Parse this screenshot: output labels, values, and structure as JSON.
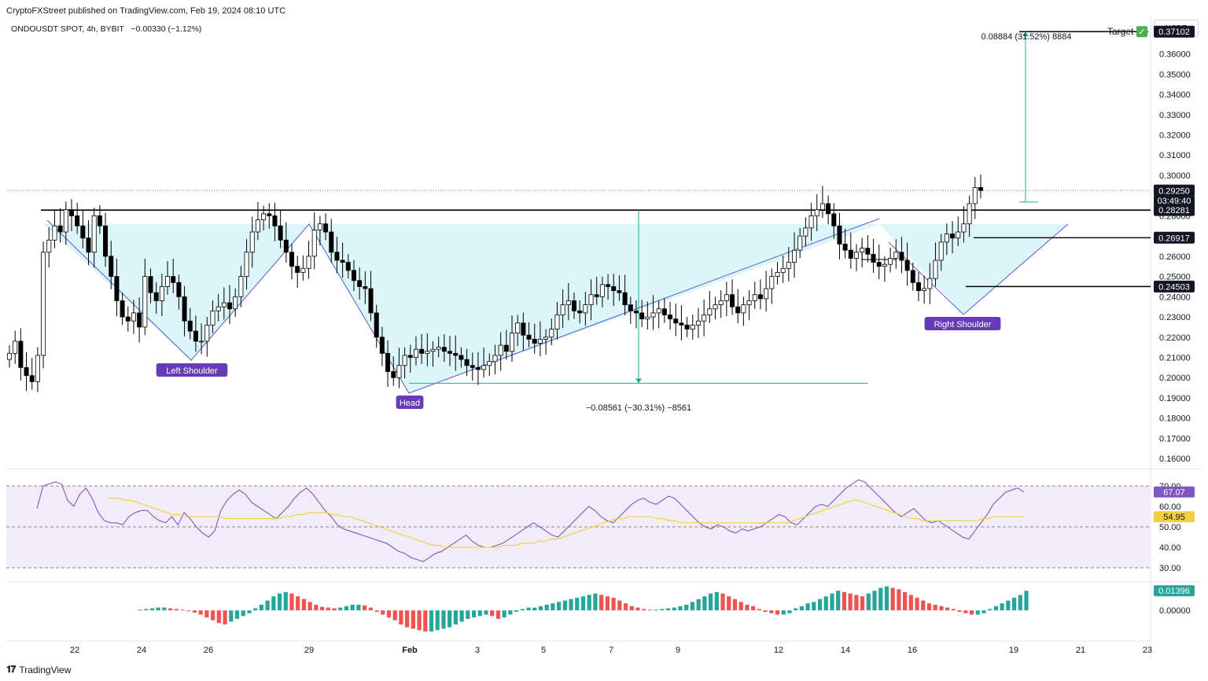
{
  "header": {
    "published": "CryptoFXStreet published on TradingView.com, Feb 19, 2024 08:10 UTC",
    "symbol_line": "ONDOUSDT SPOT, 4h, BYBIT",
    "change": "−0.00330 (−1.12%)",
    "currency": "USDT"
  },
  "footer": {
    "brand": "TradingView"
  },
  "colors": {
    "up": "#ffffff",
    "down": "#000000",
    "pattern_fill": "#c8f0f5",
    "rsi": "#7e57c2",
    "rsi_ma": "#f2d03b",
    "macd_up": "#26a69a",
    "macd_down": "#ef5350",
    "measure": "#22ab94"
  },
  "chart_data": {
    "type": "candlestick",
    "title": "ONDOUSDT SPOT, 4h, BYBIT",
    "ylabel": "USDT",
    "ylim": [
      0.155,
      0.375
    ],
    "x_ticks": [
      "22",
      "24",
      "26",
      "29",
      "Feb",
      "3",
      "5",
      "7",
      "9",
      "12",
      "14",
      "16",
      "19",
      "21",
      "23"
    ],
    "y_ticks": [
      "0.16000",
      "0.17000",
      "0.18000",
      "0.19000",
      "0.20000",
      "0.21000",
      "0.22000",
      "0.23000",
      "0.24000",
      "0.25000",
      "0.26000",
      "0.27000",
      "0.28000",
      "0.29000",
      "0.30000",
      "0.31000",
      "0.32000",
      "0.33000",
      "0.34000",
      "0.35000",
      "0.36000"
    ],
    "price_labels": [
      {
        "text": "0.37102",
        "value": 0.37102,
        "style": "black"
      },
      {
        "text": "0.29250",
        "value": 0.2925,
        "style": "black"
      },
      {
        "text": "03:49:40",
        "value": 0.2875,
        "style": "black-sub"
      },
      {
        "text": "0.28281",
        "value": 0.28281,
        "style": "black"
      },
      {
        "text": "0.26917",
        "value": 0.26917,
        "style": "black"
      },
      {
        "text": "0.24503",
        "value": 0.24503,
        "style": "black"
      }
    ],
    "close_series": [
      0.212,
      0.218,
      0.205,
      0.201,
      0.198,
      0.211,
      0.262,
      0.268,
      0.275,
      0.272,
      0.283,
      0.28,
      0.275,
      0.269,
      0.262,
      0.28,
      0.275,
      0.26,
      0.25,
      0.238,
      0.23,
      0.228,
      0.232,
      0.225,
      0.25,
      0.242,
      0.238,
      0.245,
      0.25,
      0.247,
      0.24,
      0.228,
      0.223,
      0.218,
      0.218,
      0.226,
      0.233,
      0.235,
      0.237,
      0.234,
      0.24,
      0.25,
      0.262,
      0.272,
      0.278,
      0.281,
      0.28,
      0.275,
      0.268,
      0.262,
      0.255,
      0.252,
      0.254,
      0.26,
      0.273,
      0.276,
      0.272,
      0.262,
      0.258,
      0.257,
      0.253,
      0.248,
      0.245,
      0.244,
      0.232,
      0.22,
      0.212,
      0.203,
      0.2,
      0.206,
      0.211,
      0.21,
      0.214,
      0.212,
      0.213,
      0.214,
      0.215,
      0.213,
      0.212,
      0.211,
      0.209,
      0.206,
      0.205,
      0.204,
      0.206,
      0.208,
      0.211,
      0.216,
      0.213,
      0.222,
      0.227,
      0.221,
      0.219,
      0.217,
      0.219,
      0.22,
      0.224,
      0.231,
      0.236,
      0.238,
      0.233,
      0.232,
      0.236,
      0.241,
      0.24,
      0.246,
      0.245,
      0.243,
      0.242,
      0.236,
      0.233,
      0.232,
      0.229,
      0.23,
      0.232,
      0.234,
      0.231,
      0.229,
      0.227,
      0.226,
      0.224,
      0.226,
      0.228,
      0.231,
      0.234,
      0.236,
      0.238,
      0.241,
      0.235,
      0.232,
      0.236,
      0.238,
      0.241,
      0.239,
      0.244,
      0.25,
      0.252,
      0.254,
      0.257,
      0.263,
      0.27,
      0.274,
      0.28,
      0.283,
      0.286,
      0.281,
      0.275,
      0.266,
      0.263,
      0.259,
      0.262,
      0.264,
      0.261,
      0.257,
      0.255,
      0.256,
      0.259,
      0.262,
      0.258,
      0.253,
      0.247,
      0.243,
      0.244,
      0.249,
      0.258,
      0.267,
      0.271,
      0.269,
      0.272,
      0.276,
      0.286,
      0.294,
      0.2925
    ],
    "patterns": {
      "left_shoulder": "Left Shoulder",
      "head": "Head",
      "right_shoulder": "Right Shoulder",
      "neckline": 0.28281,
      "head_low": 0.1972
    },
    "measurements": {
      "depth_label": "−0.08561 (−30.31%) −8561",
      "target_label": "0.08884 (31.52%) 8884",
      "target_text": "Target",
      "target_check": "✓"
    },
    "rsi": {
      "y_ticks": [
        "70.00",
        "60.00",
        "50.00",
        "40.00",
        "30.00"
      ],
      "ylim": [
        25,
        75
      ],
      "value_label": "67.07",
      "ma_label": "54.95",
      "values": [
        59,
        70,
        71,
        72,
        71,
        63,
        60,
        66,
        69,
        64,
        57,
        53,
        52,
        52,
        51,
        55,
        57,
        58,
        58,
        55,
        53,
        52,
        55,
        51,
        57,
        54,
        50,
        47,
        45,
        48,
        58,
        63,
        66,
        68,
        66,
        62,
        60,
        58,
        56,
        54,
        57,
        60,
        64,
        67,
        69,
        66,
        62,
        58,
        55,
        51,
        49,
        48,
        47,
        46,
        45,
        44,
        43,
        42,
        40,
        38,
        37,
        35,
        34,
        33,
        35,
        37,
        38,
        40,
        42,
        44,
        46,
        43,
        41,
        40,
        40,
        41,
        42,
        44,
        46,
        48,
        50,
        52,
        50,
        48,
        46,
        45,
        48,
        51,
        54,
        57,
        60,
        58,
        55,
        53,
        52,
        55,
        58,
        61,
        63,
        64,
        62,
        61,
        63,
        65,
        64,
        61,
        58,
        55,
        52,
        50,
        49,
        51,
        50,
        48,
        47,
        49,
        48,
        49,
        50,
        52,
        54,
        56,
        55,
        52,
        51,
        54,
        57,
        60,
        61,
        60,
        63,
        66,
        69,
        71,
        73,
        72,
        69,
        66,
        63,
        60,
        57,
        55,
        57,
        59,
        56,
        53,
        52,
        53,
        51,
        49,
        47,
        45,
        44,
        48,
        52,
        56,
        61,
        64,
        67,
        68,
        69,
        67
      ],
      "ma": [
        64,
        64,
        64,
        63,
        63,
        62,
        61,
        60,
        59,
        58,
        57,
        56,
        56,
        55,
        55,
        55,
        55,
        55,
        55,
        55,
        54,
        54,
        54,
        54,
        54,
        54,
        54,
        54,
        54,
        54,
        55,
        55,
        56,
        56,
        57,
        57,
        57,
        57,
        56,
        56,
        55,
        55,
        54,
        53,
        52,
        51,
        50,
        49,
        48,
        47,
        46,
        45,
        44,
        43,
        42,
        41,
        41,
        40,
        40,
        40,
        40,
        40,
        40,
        40,
        40,
        40,
        40,
        41,
        41,
        41,
        42,
        42,
        42,
        43,
        43,
        44,
        44,
        45,
        46,
        47,
        48,
        49,
        50,
        51,
        52,
        53,
        54,
        54,
        55,
        55,
        55,
        55,
        55,
        54,
        54,
        53,
        53,
        52,
        52,
        52,
        52,
        52,
        52,
        52,
        52,
        52,
        52,
        52,
        52,
        52,
        52,
        52,
        52,
        52,
        52,
        52,
        53,
        54,
        55,
        56,
        57,
        58,
        59,
        60,
        61,
        62,
        63,
        63,
        62,
        61,
        60,
        59,
        58,
        57,
        56,
        55,
        54,
        54,
        53,
        53,
        53,
        53,
        53,
        53,
        53,
        53,
        53,
        53,
        54,
        54,
        55,
        55,
        55,
        55,
        55,
        55
      ]
    },
    "macd": {
      "value_label": "0.01396",
      "zero_label": "0.00000",
      "ylim": [
        -0.02,
        0.018
      ],
      "hist": [
        0.0005,
        0.001,
        0.0015,
        0.002,
        0.002,
        0.0015,
        0.001,
        0.0005,
        -0.0005,
        -0.0015,
        -0.003,
        -0.005,
        -0.007,
        -0.009,
        -0.01,
        -0.008,
        -0.006,
        -0.004,
        -0.002,
        0.0015,
        0.004,
        0.007,
        0.01,
        0.012,
        0.013,
        0.012,
        0.01,
        0.008,
        0.006,
        0.004,
        0.0025,
        0.002,
        0.0015,
        0.002,
        0.003,
        0.004,
        0.004,
        0.0035,
        0.002,
        -0.001,
        -0.003,
        -0.005,
        -0.007,
        -0.01,
        -0.012,
        -0.013,
        -0.014,
        -0.015,
        -0.015,
        -0.014,
        -0.013,
        -0.012,
        -0.01,
        -0.008,
        -0.006,
        -0.005,
        -0.004,
        -0.003,
        -0.004,
        -0.006,
        -0.005,
        -0.003,
        -0.001,
        0.001,
        0.002,
        0.002,
        0.003,
        0.004,
        0.005,
        0.006,
        0.007,
        0.008,
        0.009,
        0.01,
        0.011,
        0.012,
        0.011,
        0.01,
        0.009,
        0.007,
        0.005,
        0.003,
        0.002,
        0.001,
        0.0005,
        0.0005,
        0.001,
        0.0015,
        0.002,
        0.003,
        0.004,
        0.006,
        0.008,
        0.01,
        0.012,
        0.013,
        0.012,
        0.01,
        0.008,
        0.006,
        0.004,
        0.003,
        0.001,
        -0.001,
        -0.002,
        -0.003,
        -0.003,
        -0.002,
        0.0015,
        0.003,
        0.005
      ],
      "hist2": [
        0.006,
        0.008,
        0.01,
        0.012,
        0.014,
        0.013,
        0.012,
        0.011,
        0.01,
        0.012,
        0.014,
        0.016,
        0.017,
        0.016,
        0.015,
        0.013,
        0.011,
        0.009,
        0.007,
        0.005,
        0.004,
        0.003,
        0.002,
        0.001,
        -0.001,
        -0.002,
        -0.003,
        -0.003,
        -0.002,
        0.001,
        0.003,
        0.005,
        0.007,
        0.009,
        0.011,
        0.01396
      ]
    }
  }
}
